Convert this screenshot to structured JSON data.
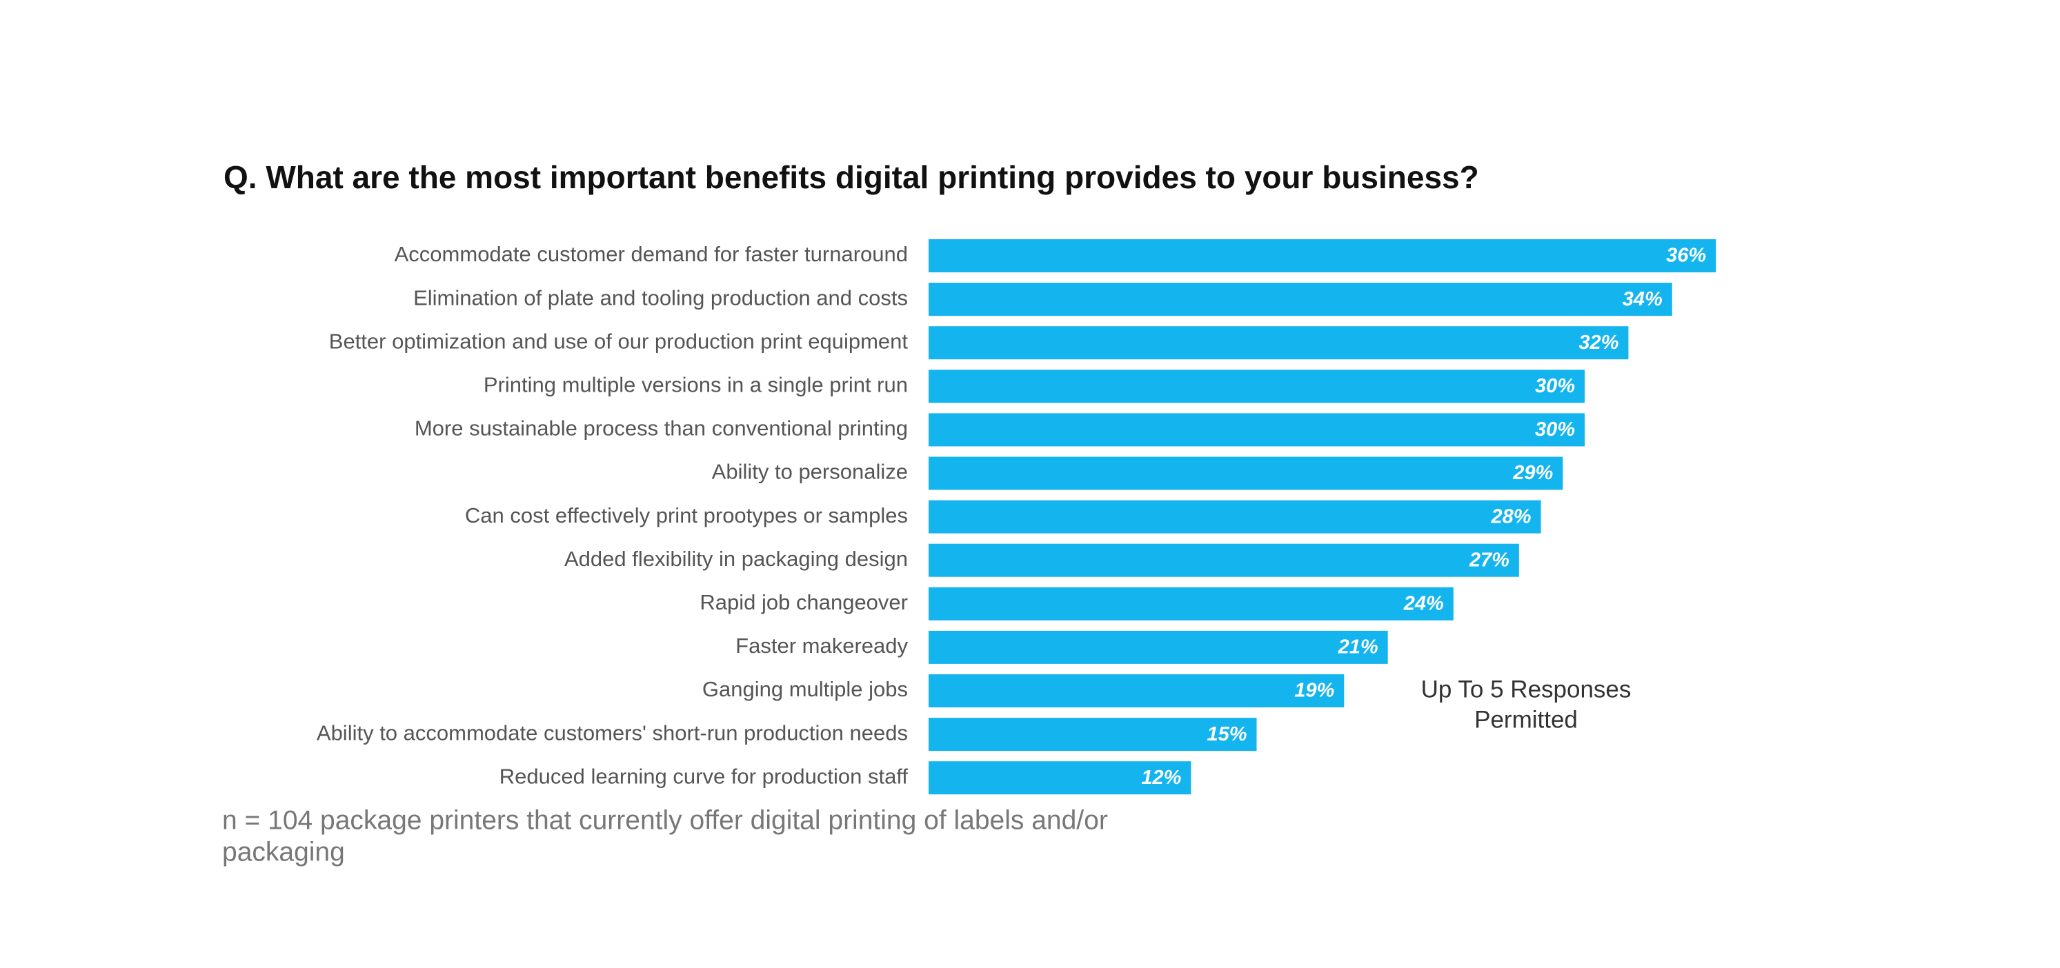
{
  "chart_data": {
    "type": "bar",
    "orientation": "horizontal",
    "title": "Q. What are the most important benefits digital printing provides to your business?",
    "categories": [
      "Accommodate customer demand for faster turnaround",
      "Elimination of plate and tooling production and costs",
      "Better optimization and use of our production print equipment",
      "Printing multiple versions in a single print run",
      "More sustainable process than conventional printing",
      "Ability to personalize",
      "Can cost effectively print prootypes or samples",
      "Added flexibility in packaging design",
      "Rapid job changeover",
      "Faster makeready",
      "Ganging multiple jobs",
      "Ability to accommodate customers' short-run production needs",
      "Reduced learning curve for production staff"
    ],
    "values": [
      36,
      34,
      32,
      30,
      30,
      29,
      28,
      27,
      24,
      21,
      19,
      15,
      12
    ],
    "value_labels": [
      "36%",
      "34%",
      "32%",
      "30%",
      "30%",
      "29%",
      "28%",
      "27%",
      "24%",
      "21%",
      "19%",
      "15%",
      "12%"
    ],
    "color": "#14b4ef",
    "annotation": [
      "Up To 5 Responses",
      "Permitted"
    ],
    "footnote": [
      "n = 104 package printers that currently offer digital printing of labels and/or",
      "packaging"
    ]
  }
}
